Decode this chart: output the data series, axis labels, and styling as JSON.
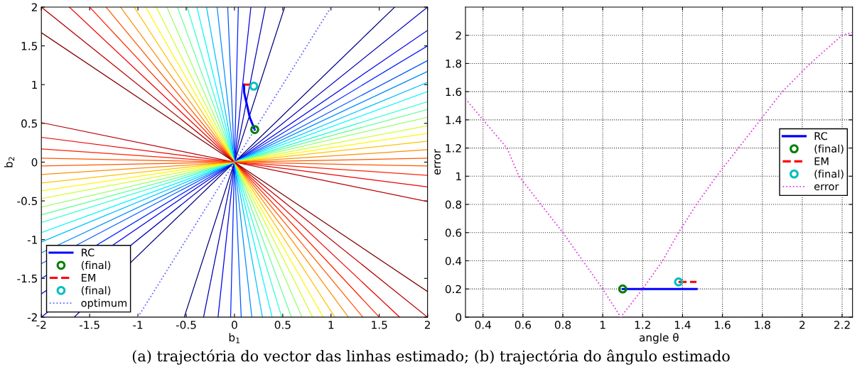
{
  "chart_data": [
    {
      "type": "line",
      "xlabel": "b$_{1}$",
      "ylabel": "b$_{2}$",
      "xlim": [
        -2,
        2
      ],
      "ylim": [
        -2,
        2
      ],
      "xticks": [
        -2,
        -1.5,
        -1,
        -0.5,
        0,
        0.5,
        1,
        1.5,
        2
      ],
      "yticks": [
        -2,
        -1.5,
        -1,
        -0.5,
        0,
        0.5,
        1,
        1.5,
        2
      ],
      "grid": false,
      "legend": "bottom left",
      "annotations": [
        "(a) trajectória do vector das linhas estimado; (b) trajectória do ângulo estimado"
      ],
      "series": [
        {
          "name": "RC",
          "color": "#0000ff",
          "line_style": "solid",
          "x": [
            0.1,
            0.1,
            0.14,
            0.16,
            0.19,
            0.21
          ],
          "values": [
            1.0,
            0.9,
            0.68,
            0.57,
            0.48,
            0.42
          ]
        },
        {
          "type": "scatter",
          "name": "(final)",
          "color": "#007f00",
          "marker": "circle",
          "x": [
            0.21
          ],
          "values": [
            0.42
          ]
        },
        {
          "name": "EM",
          "color": "#ff0000",
          "line_style": "dashed",
          "x": [
            0.1,
            0.16
          ],
          "values": [
            1.0,
            1.0
          ]
        },
        {
          "type": "scatter",
          "name": "(final)",
          "color": "#00bfbf",
          "marker": "circle",
          "x": [
            0.2
          ],
          "values": [
            0.98
          ]
        },
        {
          "name": "optimum",
          "color": "#6666ff",
          "line_style": "dotted",
          "x": [
            -1,
            1
          ],
          "values": [
            -2,
            2
          ]
        },
        {
          "color": "#000080",
          "x": [
            -0.52,
            0.52
          ],
          "values": [
            -2,
            2
          ]
        },
        {
          "color": "#0000b5",
          "x": [
            -0.32,
            0.32
          ],
          "values": [
            -2,
            2
          ]
        },
        {
          "color": "#0000eb",
          "x": [
            -0.17,
            0.17
          ],
          "values": [
            -2,
            2
          ]
        },
        {
          "color": "#0022ff",
          "x": [
            -0.04,
            0.04
          ],
          "values": [
            -2,
            2
          ]
        },
        {
          "color": "#0057ff",
          "x": [
            0.07,
            -0.07
          ],
          "values": [
            -2,
            2
          ]
        },
        {
          "color": "#008dff",
          "x": [
            0.18,
            -0.18
          ],
          "values": [
            -2,
            2
          ]
        },
        {
          "color": "#00c2ff",
          "x": [
            0.29,
            -0.29
          ],
          "values": [
            -2,
            2
          ]
        },
        {
          "color": "#00f8ff",
          "x": [
            0.39,
            -0.39
          ],
          "values": [
            -2,
            2
          ]
        },
        {
          "color": "#2fffd0",
          "x": [
            0.49,
            -0.49
          ],
          "values": [
            -2,
            2
          ]
        },
        {
          "color": "#65ff9a",
          "x": [
            0.59,
            -0.59
          ],
          "values": [
            -2,
            2
          ]
        },
        {
          "color": "#9aff65",
          "x": [
            0.7,
            -0.7
          ],
          "values": [
            -2,
            2
          ]
        },
        {
          "color": "#d0ff2f",
          "x": [
            0.81,
            -0.81
          ],
          "values": [
            -2,
            2
          ]
        },
        {
          "color": "#fff800",
          "x": [
            0.92,
            -0.92
          ],
          "values": [
            -2,
            2
          ]
        },
        {
          "color": "#ffc200",
          "x": [
            1.04,
            -1.04
          ],
          "values": [
            -2,
            2
          ]
        },
        {
          "color": "#ff8d00",
          "x": [
            1.18,
            -1.18
          ],
          "values": [
            -2,
            2
          ]
        },
        {
          "color": "#ff5700",
          "x": [
            1.33,
            -1.33
          ],
          "values": [
            -2,
            2
          ]
        },
        {
          "color": "#ff2200",
          "x": [
            1.5,
            -1.5
          ],
          "values": [
            -2,
            2
          ]
        },
        {
          "color": "#eb0000",
          "x": [
            1.71,
            -1.71
          ],
          "values": [
            -2,
            2
          ]
        },
        {
          "color": "#b50000",
          "x": [
            2,
            -2
          ],
          "values": [
            -2,
            2
          ]
        },
        {
          "color": "#800000",
          "x": [
            -2,
            2
          ],
          "values": [
            1.67,
            -1.67
          ]
        },
        {
          "color": "#b50000",
          "x": [
            -2,
            2
          ],
          "values": [
            0.51,
            -0.51
          ]
        },
        {
          "color": "#eb0000",
          "x": [
            -2,
            2
          ],
          "values": [
            0.32,
            -0.32
          ]
        },
        {
          "color": "#ff2200",
          "x": [
            -2,
            2
          ],
          "values": [
            0.17,
            -0.17
          ]
        },
        {
          "color": "#ff5700",
          "x": [
            -2,
            2
          ],
          "values": [
            0.05,
            -0.05
          ]
        },
        {
          "color": "#000080",
          "x": [
            -1.66,
            1.66
          ],
          "values": [
            -2,
            2
          ]
        },
        {
          "color": "#0000b5",
          "x": [
            -2,
            2
          ],
          "values": [
            -2,
            2
          ]
        },
        {
          "color": "#0000eb",
          "x": [
            -2,
            2
          ],
          "values": [
            -1.7,
            1.7
          ]
        },
        {
          "color": "#0022ff",
          "x": [
            -2,
            2
          ],
          "values": [
            -1.5,
            1.5
          ]
        },
        {
          "color": "#0057ff",
          "x": [
            -2,
            2
          ],
          "values": [
            -1.31,
            1.31
          ]
        },
        {
          "color": "#008dff",
          "x": [
            -2,
            2
          ],
          "values": [
            -1.17,
            1.17
          ]
        },
        {
          "color": "#00c2ff",
          "x": [
            -2,
            2
          ],
          "values": [
            -1.03,
            1.03
          ]
        },
        {
          "color": "#00f8ff",
          "x": [
            -2,
            2
          ],
          "values": [
            -0.91,
            0.91
          ]
        },
        {
          "color": "#2fffd0",
          "x": [
            -2,
            2
          ],
          "values": [
            -0.78,
            0.78
          ]
        },
        {
          "color": "#65ff9a",
          "x": [
            -2,
            2
          ],
          "values": [
            -0.68,
            0.68
          ]
        },
        {
          "color": "#9aff65",
          "x": [
            -2,
            2
          ],
          "values": [
            -0.58,
            0.58
          ]
        },
        {
          "color": "#d0ff2f",
          "x": [
            -2,
            2
          ],
          "values": [
            -0.47,
            0.47
          ]
        },
        {
          "color": "#fff800",
          "x": [
            -2,
            2
          ],
          "values": [
            -0.37,
            0.37
          ]
        },
        {
          "color": "#ffc200",
          "x": [
            -2,
            2
          ],
          "values": [
            -0.27,
            0.27
          ]
        },
        {
          "color": "#ff8d00",
          "x": [
            -2,
            2
          ],
          "values": [
            -0.16,
            0.16
          ]
        },
        {
          "color": "#ff5700",
          "x": [
            -2,
            2
          ],
          "values": [
            -0.05,
            0.05
          ]
        }
      ]
    },
    {
      "type": "line",
      "xlabel": "angle θ",
      "ylabel": "error",
      "xlim": [
        0.312,
        2.252
      ],
      "ylim": [
        0,
        2.2
      ],
      "xticks": [
        0.4,
        0.6,
        0.8,
        1,
        1.2,
        1.4,
        1.6,
        1.8,
        2,
        2.2
      ],
      "yticks": [
        0,
        0.2,
        0.4,
        0.6,
        0.8,
        1,
        1.2,
        1.4,
        1.6,
        1.8,
        2
      ],
      "grid": true,
      "legend": "right",
      "series": [
        {
          "name": "RC",
          "color": "#0000ff",
          "line_style": "solid",
          "x": [
            1.1,
            1.47
          ],
          "values": [
            0.2,
            0.2
          ]
        },
        {
          "type": "scatter",
          "name": "(final)",
          "color": "#007f00",
          "marker": "circle",
          "x": [
            1.1
          ],
          "values": [
            0.2
          ]
        },
        {
          "name": "EM",
          "color": "#ff0000",
          "line_style": "dashed",
          "x": [
            1.38,
            1.47
          ],
          "values": [
            0.25,
            0.25
          ]
        },
        {
          "type": "scatter",
          "name": "(final)",
          "color": "#00bfbf",
          "marker": "circle",
          "x": [
            1.38
          ],
          "values": [
            0.25
          ]
        },
        {
          "name": "error",
          "color": "#e040e0",
          "line_style": "dotted",
          "x": [
            0.312,
            0.4,
            0.52,
            0.58,
            0.69,
            0.8,
            0.9,
            1.0,
            1.09,
            1.2,
            1.3,
            1.38,
            1.47,
            1.57,
            1.68,
            1.79,
            1.9,
            2.04,
            2.2,
            2.252
          ],
          "values": [
            1.55,
            1.4,
            1.2,
            1.0,
            0.8,
            0.6,
            0.4,
            0.2,
            0,
            0.2,
            0.4,
            0.6,
            0.8,
            1.0,
            1.2,
            1.4,
            1.6,
            1.8,
            2.0,
            2.02
          ]
        }
      ]
    }
  ]
}
